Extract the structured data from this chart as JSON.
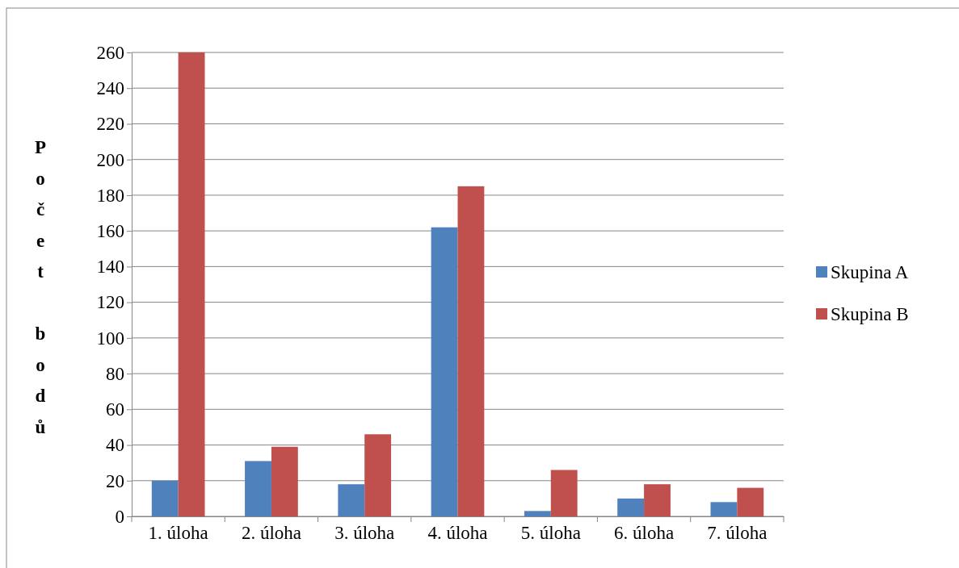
{
  "chart_data": {
    "type": "bar",
    "ylabel": "Počet bodů",
    "categories": [
      "1. úloha",
      "2. úloha",
      "3. úloha",
      "4. úloha",
      "5. úloha",
      "6. úloha",
      "7. úloha"
    ],
    "series": [
      {
        "name": "Skupina A",
        "color": "#4f81bd",
        "values": [
          20,
          31,
          18,
          162,
          3,
          10,
          8
        ]
      },
      {
        "name": "Skupina B",
        "color": "#c0504d",
        "values": [
          260,
          39,
          46,
          185,
          26,
          18,
          16
        ]
      }
    ],
    "ylim": [
      0,
      260
    ],
    "yticks": [
      0,
      20,
      40,
      60,
      80,
      100,
      120,
      140,
      160,
      180,
      200,
      220,
      240,
      260
    ],
    "grid": "y",
    "legend": "right"
  }
}
